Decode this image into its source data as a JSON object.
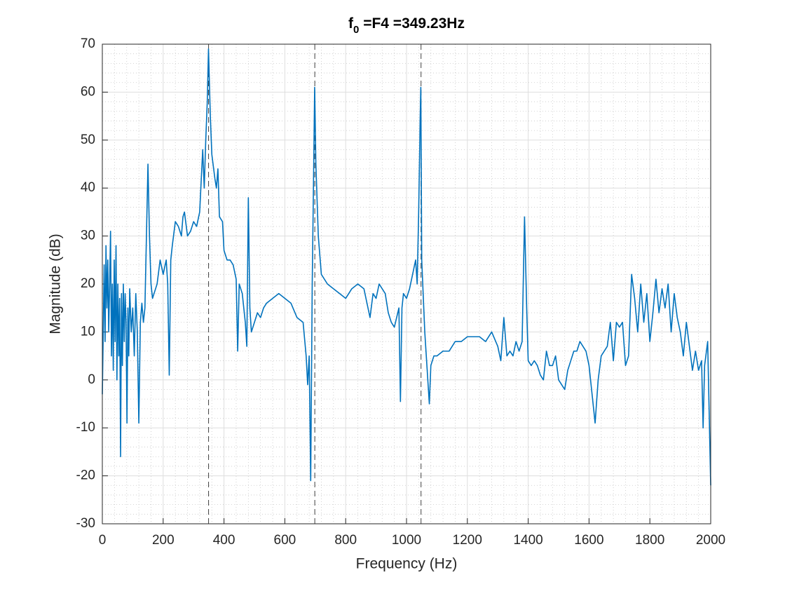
{
  "chart_data": {
    "type": "line",
    "title": {
      "base": "f",
      "subscript": "0",
      "rest": " =F4 =349.23Hz"
    },
    "xlabel": "Frequency (Hz)",
    "ylabel": "Magnitude (dB)",
    "xlim": [
      0,
      2000
    ],
    "ylim": [
      -30,
      70
    ],
    "xticks": [
      0,
      200,
      400,
      600,
      800,
      1000,
      1200,
      1400,
      1600,
      1800,
      2000
    ],
    "yticks": [
      -30,
      -20,
      -10,
      0,
      10,
      20,
      30,
      40,
      50,
      60,
      70
    ],
    "grid": true,
    "minor_grid": true,
    "color": "#0072bd",
    "vlines": [
      349.23,
      698.46,
      1047.69
    ],
    "vline_color": "#404040",
    "x": [
      0,
      3,
      6,
      9,
      12,
      15,
      18,
      21,
      24,
      27,
      30,
      33,
      36,
      39,
      42,
      45,
      48,
      51,
      54,
      57,
      60,
      63,
      66,
      69,
      72,
      75,
      78,
      81,
      84,
      87,
      90,
      95,
      100,
      105,
      110,
      115,
      120,
      125,
      130,
      135,
      140,
      145,
      150,
      155,
      160,
      165,
      170,
      180,
      190,
      200,
      210,
      215,
      220,
      225,
      230,
      240,
      250,
      260,
      265,
      270,
      280,
      290,
      300,
      310,
      320,
      330,
      335,
      340,
      345,
      349,
      355,
      360,
      370,
      375,
      380,
      385,
      395,
      400,
      410,
      420,
      430,
      440,
      445,
      450,
      460,
      470,
      475,
      480,
      485,
      490,
      500,
      510,
      520,
      530,
      540,
      560,
      580,
      600,
      620,
      640,
      660,
      670,
      675,
      680,
      685,
      690,
      695,
      698,
      702,
      710,
      720,
      740,
      760,
      780,
      800,
      820,
      840,
      860,
      870,
      880,
      890,
      900,
      910,
      920,
      930,
      940,
      950,
      960,
      975,
      980,
      985,
      990,
      1000,
      1010,
      1020,
      1030,
      1035,
      1040,
      1045,
      1047,
      1050,
      1060,
      1070,
      1075,
      1080,
      1090,
      1100,
      1120,
      1140,
      1160,
      1180,
      1200,
      1220,
      1240,
      1260,
      1280,
      1300,
      1310,
      1320,
      1330,
      1340,
      1350,
      1360,
      1370,
      1380,
      1388,
      1395,
      1400,
      1410,
      1420,
      1430,
      1440,
      1450,
      1460,
      1470,
      1480,
      1490,
      1500,
      1520,
      1530,
      1540,
      1550,
      1560,
      1570,
      1580,
      1590,
      1600,
      1620,
      1630,
      1640,
      1660,
      1670,
      1680,
      1690,
      1700,
      1710,
      1720,
      1730,
      1740,
      1750,
      1760,
      1770,
      1780,
      1790,
      1800,
      1810,
      1820,
      1830,
      1840,
      1850,
      1860,
      1870,
      1880,
      1890,
      1900,
      1910,
      1920,
      1930,
      1940,
      1950,
      1960,
      1970,
      1975,
      1980,
      1990,
      2000
    ],
    "values": [
      -3,
      10,
      24,
      8,
      28,
      15,
      25,
      10,
      20,
      31,
      5,
      20,
      2,
      25,
      8,
      28,
      0,
      20,
      5,
      17,
      -16,
      18,
      3,
      20,
      8,
      18,
      12,
      -9,
      15,
      5,
      19,
      10,
      15,
      5,
      18,
      10,
      -9,
      12,
      16,
      12,
      15,
      30,
      45,
      30,
      20,
      17,
      18,
      20,
      25,
      22,
      25,
      20,
      1,
      25,
      28,
      33,
      32,
      30,
      34,
      35,
      30,
      31,
      33,
      32,
      35,
      48,
      40,
      50,
      58,
      69,
      55,
      47,
      42,
      40,
      44,
      34,
      33,
      27,
      25,
      25,
      24,
      21,
      6,
      20,
      18,
      12,
      7,
      38,
      15,
      10,
      12,
      14,
      13,
      15,
      16,
      17,
      18,
      17,
      16,
      13,
      12,
      5,
      -1,
      5,
      -21,
      20,
      45,
      61,
      45,
      30,
      22,
      20,
      19,
      18,
      17,
      19,
      20,
      19,
      16,
      13,
      18,
      17,
      20,
      19,
      18,
      14,
      12,
      11,
      15,
      -4.5,
      15,
      18,
      17,
      19,
      22,
      25,
      20,
      35,
      55,
      61,
      25,
      10,
      0,
      -5,
      3,
      5,
      5,
      6,
      6,
      8,
      8,
      9,
      9,
      9,
      8,
      10,
      7,
      4,
      13,
      5,
      6,
      5,
      8,
      6,
      8,
      34,
      15,
      4,
      3,
      4,
      3,
      1,
      0,
      6,
      3,
      3,
      5,
      0,
      -2,
      2,
      4,
      6,
      6,
      8,
      7,
      6,
      3,
      -9,
      0,
      5,
      7,
      12,
      4,
      12,
      11,
      12,
      3,
      5,
      22,
      17,
      10,
      20,
      12,
      18,
      8,
      14,
      21,
      14,
      19,
      15,
      20,
      10,
      18,
      13,
      10,
      5,
      12,
      7,
      2,
      6,
      2,
      4,
      -10,
      3,
      8,
      -22
    ]
  }
}
